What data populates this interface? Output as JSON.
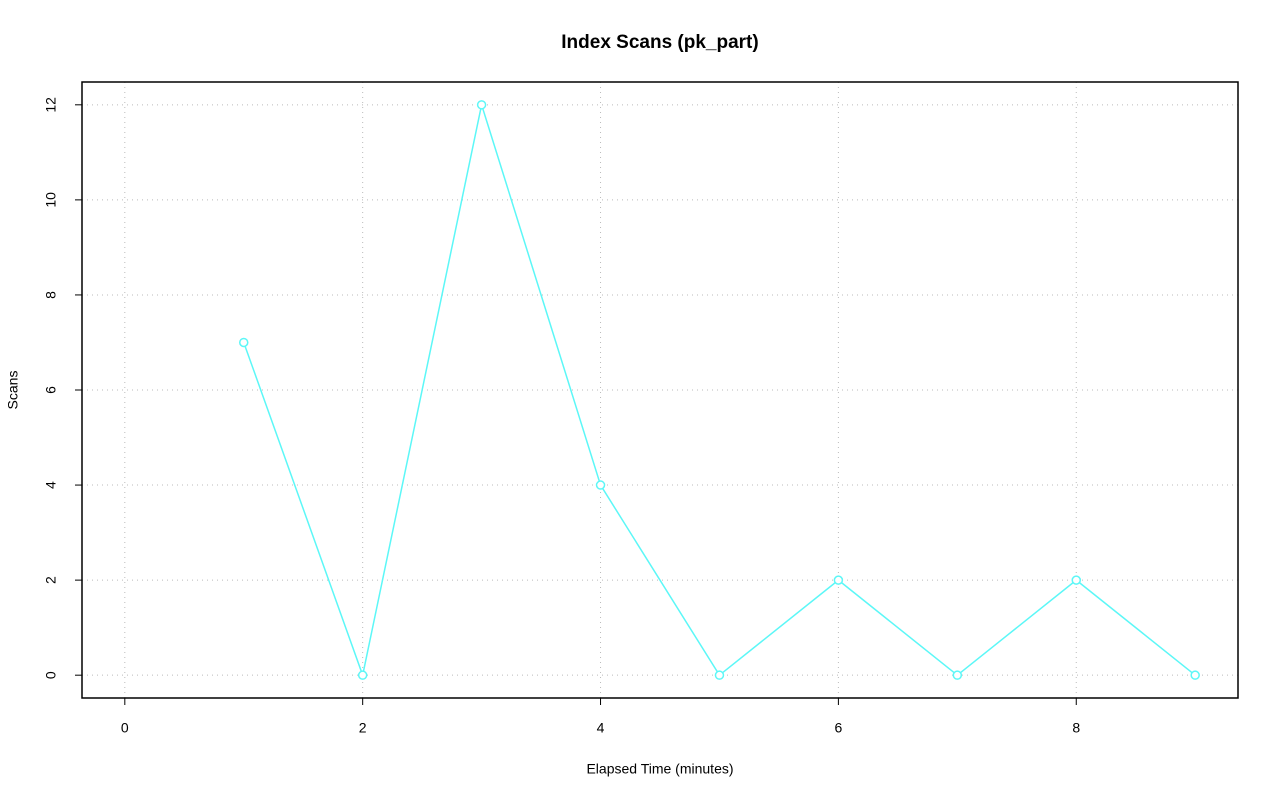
{
  "chart_data": {
    "type": "line",
    "title": "Index Scans (pk_part)",
    "x_label": "Elapsed Time (minutes)",
    "y_label": "Scans",
    "x": [
      1,
      2,
      3,
      4,
      5,
      6,
      7,
      8,
      9
    ],
    "values": [
      7,
      0,
      12,
      4,
      0,
      2,
      0,
      2,
      0
    ],
    "color": "#5cf7f7",
    "xlim": [
      -0.36,
      9.36
    ],
    "ylim": [
      -0.48,
      12.48
    ],
    "xticks": [
      0,
      2,
      4,
      6,
      8
    ],
    "yticks": [
      0,
      2,
      4,
      6,
      8,
      10,
      12
    ],
    "grid": true
  }
}
